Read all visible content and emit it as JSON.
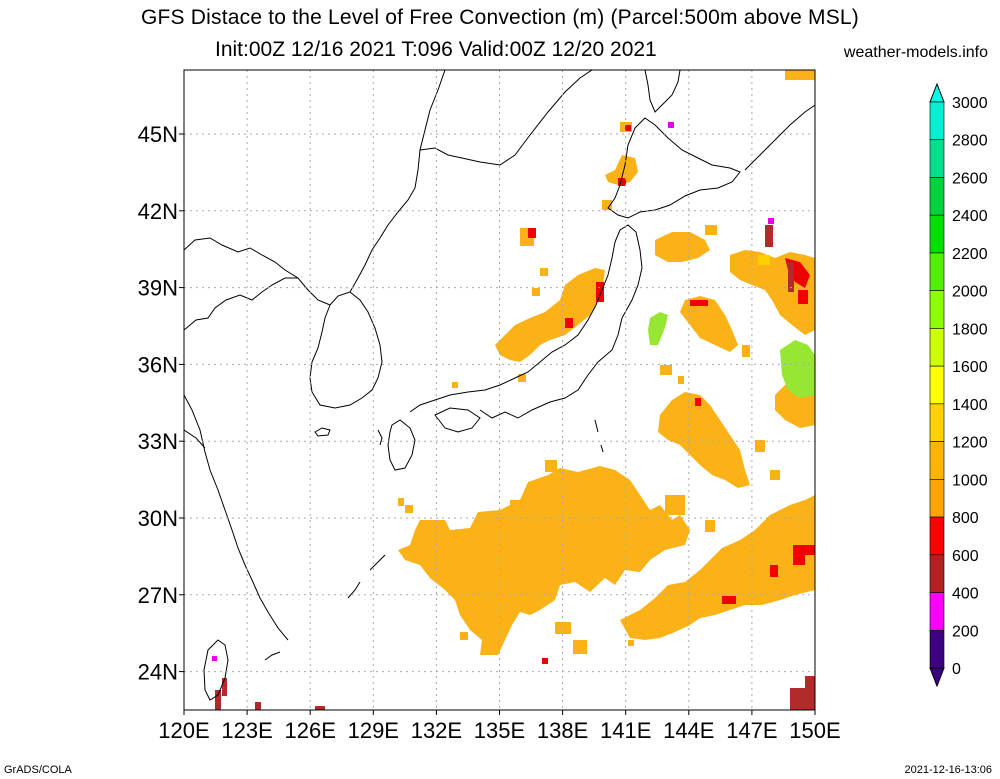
{
  "header": {
    "title_line1": "GFS Distace to the Level of Free Convection (m) (Parcel:500m above MSL)",
    "title_line2": "Init:00Z 12/16 2021 T:096 Valid:00Z 12/20 2021",
    "site": "weather-models.info"
  },
  "footer": {
    "credit": "GrADS/COLA",
    "timestamp": "2021-12-16-13:06"
  },
  "map": {
    "lon_labels": [
      "120E",
      "123E",
      "126E",
      "129E",
      "132E",
      "135E",
      "138E",
      "141E",
      "144E",
      "147E",
      "150E"
    ],
    "lat_labels": [
      "45N",
      "42N",
      "39N",
      "36N",
      "33N",
      "30N",
      "27N",
      "24N"
    ],
    "lon_values": [
      120,
      123,
      126,
      129,
      132,
      135,
      138,
      141,
      144,
      147,
      150
    ],
    "lat_values": [
      45,
      42,
      39,
      36,
      33,
      30,
      27,
      24
    ],
    "lon_range": [
      120,
      150
    ],
    "lat_range": [
      22.5,
      47.5
    ],
    "grid": "dotted"
  },
  "colorbar": {
    "labels": [
      "0",
      "200",
      "400",
      "600",
      "800",
      "1000",
      "1200",
      "1400",
      "1600",
      "1800",
      "2000",
      "2200",
      "2400",
      "2600",
      "2800",
      "3000"
    ],
    "colors": [
      "#3d0080",
      "#ff00ff",
      "#b22222",
      "#ff0000",
      "#ffa500",
      "#ffb400",
      "#ffd200",
      "#ffff00",
      "#cdff00",
      "#8cff00",
      "#50f000",
      "#00e000",
      "#00d23c",
      "#00e08c",
      "#00f0d2",
      "#00ffe6"
    ]
  },
  "colors": {
    "orange": "#fbb217",
    "dark_orange": "#f4a300",
    "red": "#f00000",
    "brown": "#b22a2a",
    "magenta": "#e800e8",
    "yellow": "#ffd000",
    "lime": "#96e633",
    "coast": "#000000"
  }
}
